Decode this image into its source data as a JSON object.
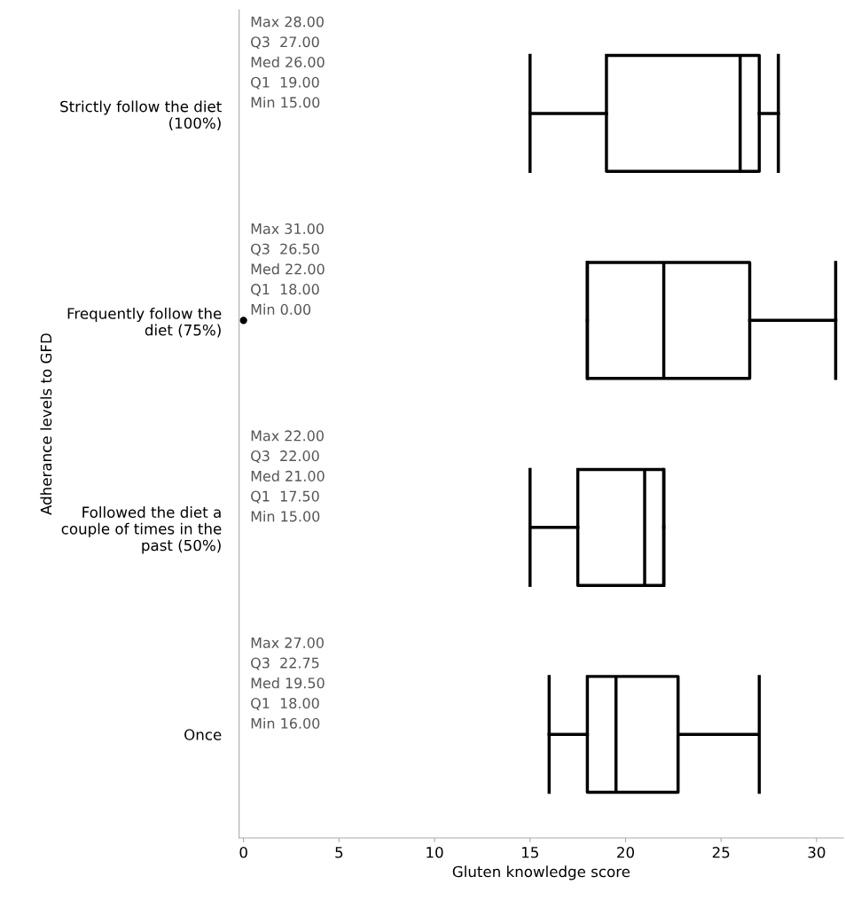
{
  "chart_data": {
    "type": "box",
    "orientation": "horizontal",
    "xlabel": "Gluten knowledge score",
    "ylabel": "Adherance levels to GFD",
    "categories": [
      "Strictly follow the diet\n(100%)",
      "Frequently follow the\ndiet (75%)",
      "Followed the diet a\ncouple of times in the\npast (50%)",
      "Once"
    ],
    "boxes": [
      {
        "low": 15,
        "q1": 19,
        "median": 26,
        "q3": 27,
        "high": 28
      },
      {
        "low": 18,
        "q1": 18,
        "median": 22,
        "q3": 26.5,
        "high": 31,
        "outliers": [
          0
        ]
      },
      {
        "low": 15,
        "q1": 17.5,
        "median": 21,
        "q3": 22,
        "high": 22
      },
      {
        "low": 16,
        "q1": 18,
        "median": 19.5,
        "q3": 22.75,
        "high": 27
      }
    ],
    "annotations": [
      "Max 28.00\nQ3  27.00\nMed 26.00\nQ1  19.00\nMin 15.00",
      "Max 31.00\nQ3  26.50\nMed 22.00\nQ1  18.00\nMin 0.00",
      "Max 22.00\nQ3  22.00\nMed 21.00\nQ1  17.50\nMin 15.00",
      "Max 27.00\nQ3  22.75\nMed 19.50\nQ1  18.00\nMin 16.00"
    ],
    "color": "#000000",
    "xlim": [
      -0.23,
      31.4
    ],
    "xticks": [
      0,
      5,
      10,
      15,
      20,
      25,
      30
    ],
    "grid": false
  }
}
